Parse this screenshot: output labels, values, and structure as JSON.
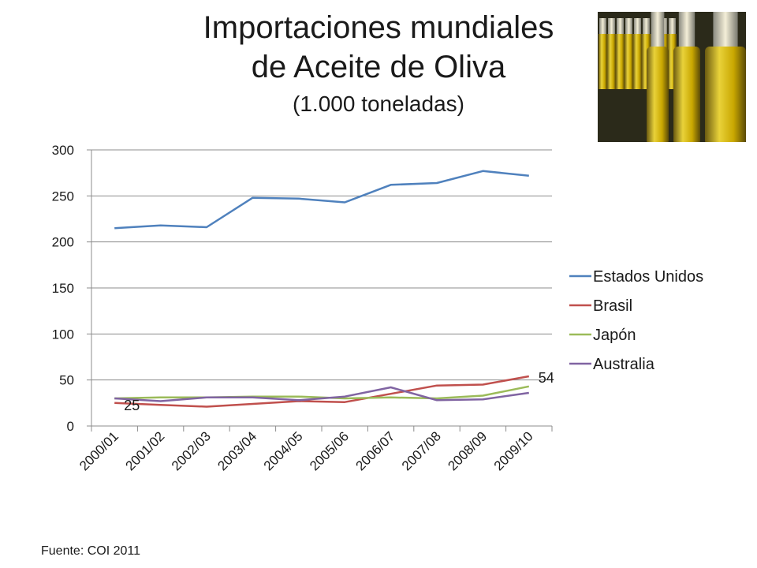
{
  "header": {
    "title_line1": "Importaciones mundiales",
    "title_line2": "de Aceite de Oliva",
    "subtitle": "(1.000 toneladas)"
  },
  "footer": {
    "source": "Fuente: COI 2011"
  },
  "photo": {
    "subject": "olive-oil-bottles",
    "colors": [
      "#c9a700",
      "#e9d23a",
      "#6b5a10",
      "#f4efd8"
    ]
  },
  "chart_data": {
    "type": "line",
    "title": "Importaciones mundiales de Aceite de Oliva",
    "subtitle": "(1.000 toneladas)",
    "categories": [
      "2000/01",
      "2001/02",
      "2002/03",
      "2003/04",
      "2004/05",
      "2005/06",
      "2006/07",
      "2007/08",
      "2008/09",
      "2009/10"
    ],
    "ylim": [
      0,
      300
    ],
    "yticks": [
      0,
      50,
      100,
      150,
      200,
      250,
      300
    ],
    "grid": true,
    "legend": "right",
    "series": [
      {
        "name": "Estados Unidos",
        "color": "#4f81bd",
        "values": [
          215,
          218,
          216,
          248,
          247,
          243,
          262,
          264,
          277,
          272
        ]
      },
      {
        "name": "Brasil",
        "color": "#c0504d",
        "values": [
          25,
          23,
          21,
          24,
          27,
          26,
          35,
          44,
          45,
          54
        ]
      },
      {
        "name": "Japón",
        "color": "#9bbb59",
        "values": [
          30,
          31,
          31,
          32,
          32,
          30,
          31,
          30,
          33,
          43
        ]
      },
      {
        "name": "Australia",
        "color": "#8064a2",
        "values": [
          30,
          27,
          31,
          31,
          28,
          32,
          42,
          28,
          29,
          36
        ]
      }
    ],
    "data_labels": [
      {
        "series": "Brasil",
        "index": 0,
        "text": "25"
      },
      {
        "series": "Brasil",
        "index": 9,
        "text": "54"
      }
    ]
  }
}
